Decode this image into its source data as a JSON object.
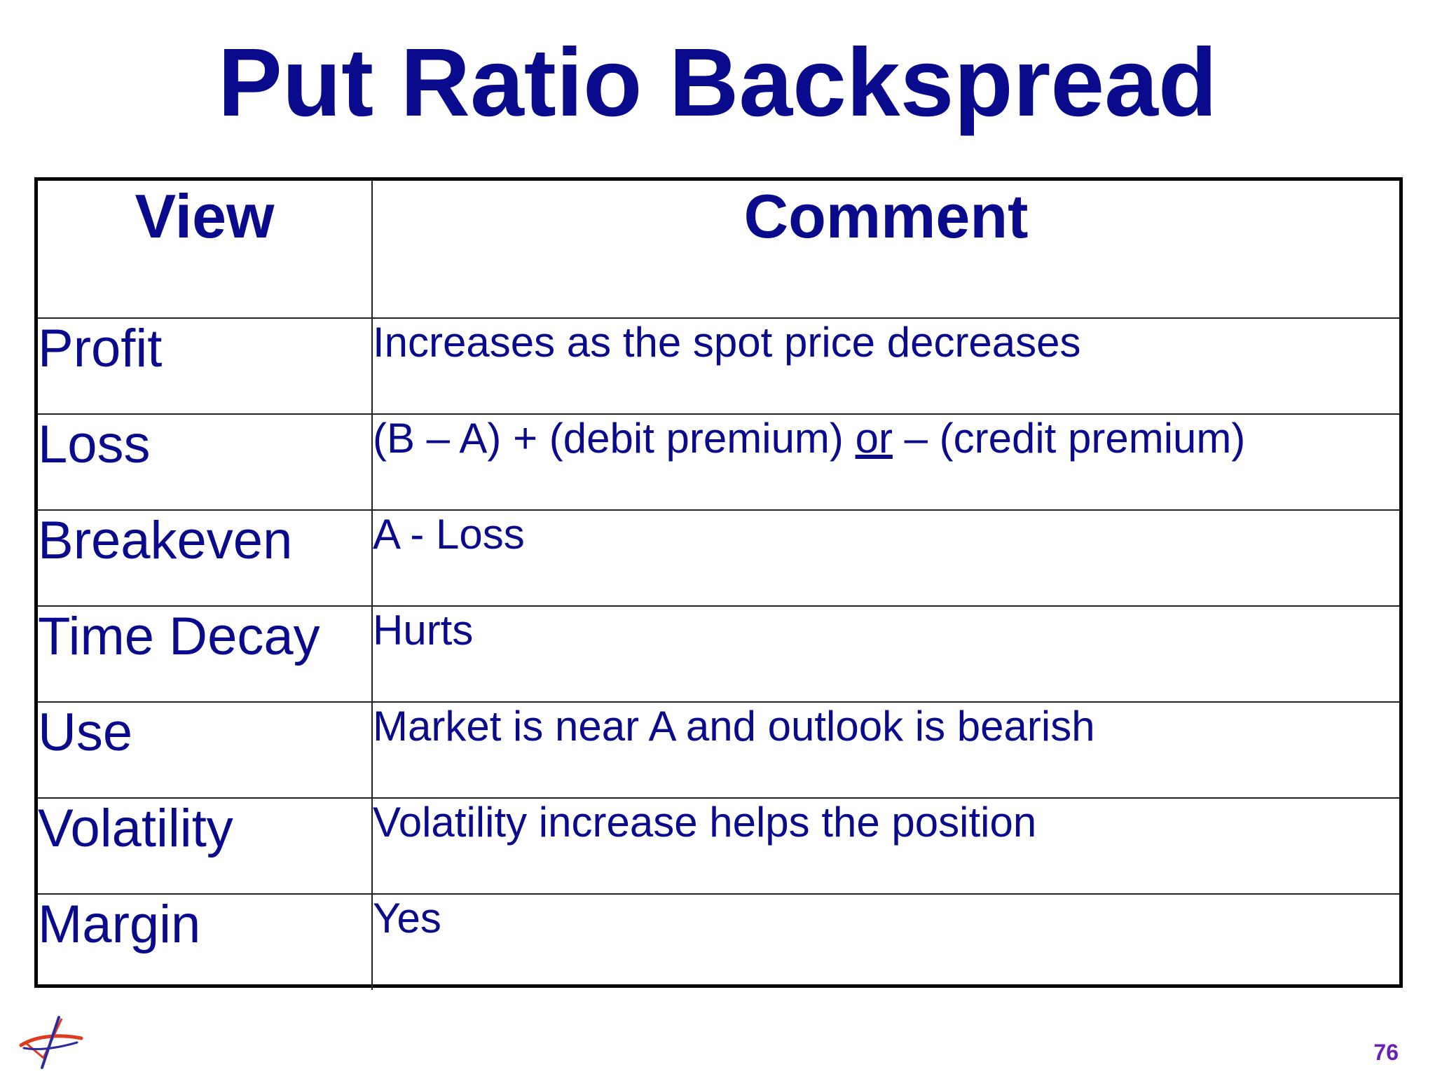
{
  "slide": {
    "title": "Put Ratio Backspread",
    "page_number": "76"
  },
  "table": {
    "headers": {
      "view": "View",
      "comment": "Comment"
    },
    "rows": [
      {
        "view": "Profit",
        "comment": "Increases as the spot price decreases"
      },
      {
        "view": "Loss",
        "comment_parts": [
          "(B – A) + (debit premium) ",
          "or",
          " – (credit premium)"
        ]
      },
      {
        "view": "Breakeven",
        "comment": "A - Loss"
      },
      {
        "view": "Time Decay",
        "comment": "Hurts"
      },
      {
        "view": "Use",
        "comment": "Market is near A and outlook is bearish"
      },
      {
        "view": "Volatility",
        "comment": "Volatility increase helps the position"
      },
      {
        "view": "Margin",
        "comment": "Yes"
      }
    ]
  },
  "colors": {
    "text": "#0a0a8c",
    "page_number": "#6a1fb5",
    "border": "#000000",
    "logo_red": "#e03a1e",
    "logo_blue": "#2b2b9e"
  },
  "icons": {
    "logo": "company-logo-icon"
  }
}
